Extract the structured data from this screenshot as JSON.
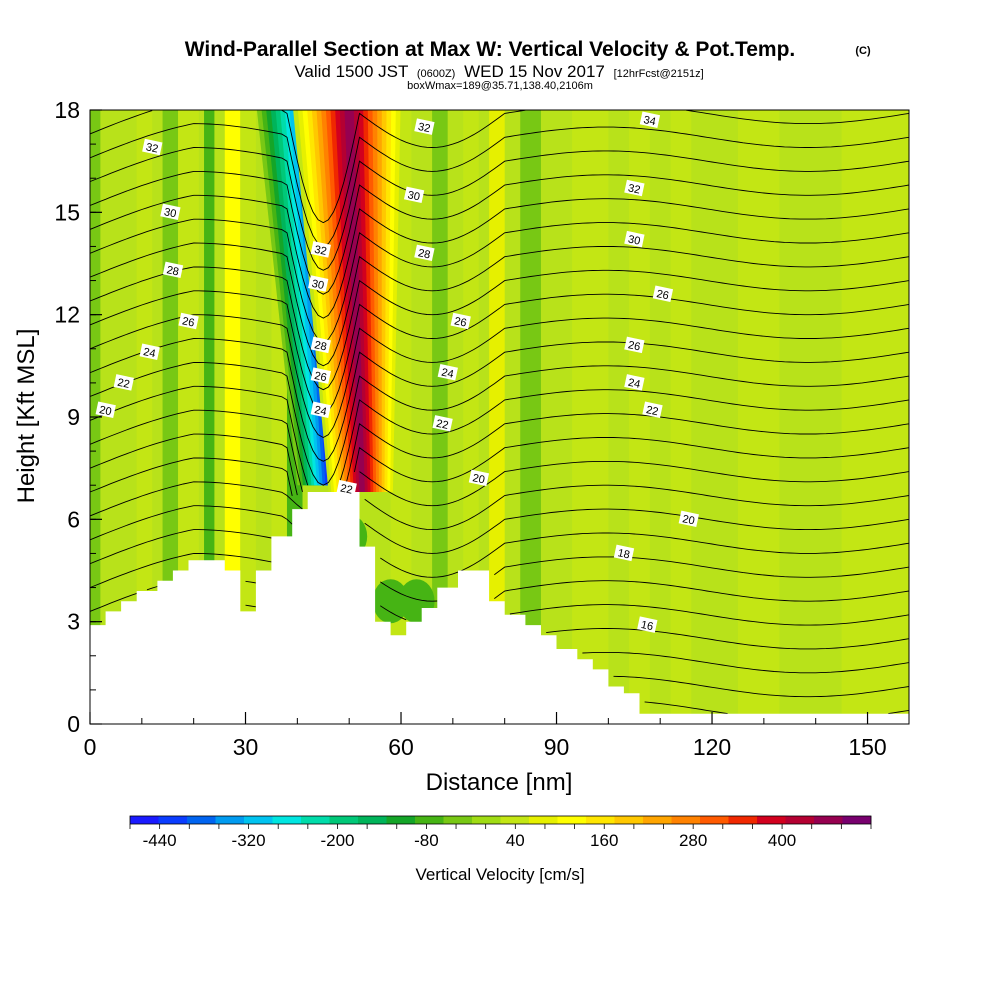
{
  "title": {
    "main": "Wind-Parallel Section at Max W: Vertical Velocity & Pot.Temp.",
    "copyright": "(C)",
    "valid_a": "Valid 1500 JST",
    "valid_b": "(0600Z)",
    "valid_c": "WED 15 Nov 2017",
    "valid_d": "[12hrFcst@2151z]",
    "box": "boxWmax=189@35.71,138.40,2106m"
  },
  "chart_data": {
    "type": "heatmap",
    "xlabel": "Distance [nm]",
    "ylabel": "Height [Kft MSL]",
    "xlim": [
      0,
      158
    ],
    "ylim": [
      0,
      18
    ],
    "x_ticks": [
      0,
      30,
      60,
      90,
      120,
      150
    ],
    "y_ticks": [
      0,
      3,
      6,
      9,
      12,
      15,
      18
    ],
    "x_ticklabels": [
      "0",
      "30",
      "60",
      "90",
      "120",
      "150"
    ],
    "y_ticklabels": [
      "0",
      "3",
      "6",
      "9",
      "12",
      "15",
      "18"
    ],
    "x_minor_step": 10,
    "y_minor_step": 1,
    "terrain_profile": {
      "x": [
        0,
        3,
        3,
        6,
        6,
        9,
        9,
        13,
        13,
        16,
        16,
        19,
        19,
        22,
        22,
        26,
        26,
        29,
        29,
        32,
        32,
        35,
        35,
        39,
        39,
        42,
        42,
        45,
        45,
        48,
        48,
        52,
        52,
        55,
        55,
        58,
        58,
        61,
        61,
        64,
        64,
        67,
        67,
        71,
        71,
        74,
        74,
        77,
        77,
        80,
        80,
        84,
        84,
        87,
        87,
        90,
        90,
        94,
        94,
        97,
        97,
        100,
        100,
        103,
        103,
        106,
        106,
        158
      ],
      "height": [
        2.9,
        2.9,
        3.3,
        3.3,
        3.6,
        3.6,
        3.9,
        3.9,
        4.2,
        4.2,
        4.5,
        4.5,
        4.8,
        4.8,
        4.8,
        4.8,
        4.5,
        4.5,
        3.3,
        3.3,
        4.5,
        4.5,
        5.5,
        5.5,
        6.3,
        6.3,
        6.8,
        6.8,
        6.8,
        6.8,
        6.8,
        6.8,
        5.2,
        5.2,
        3.0,
        3.0,
        2.6,
        2.6,
        3.0,
        3.0,
        3.4,
        3.4,
        4.0,
        4.0,
        4.5,
        4.5,
        4.5,
        4.5,
        3.6,
        3.6,
        3.2,
        3.2,
        2.9,
        2.9,
        2.6,
        2.6,
        2.2,
        2.2,
        1.9,
        1.9,
        1.6,
        1.6,
        1.1,
        1.1,
        0.9,
        0.9,
        0.3,
        0.3
      ]
    },
    "vertical_velocity_field": {
      "units": "cm/s",
      "background_bands": [
        {
          "x0": 0,
          "x1": 2,
          "value": -40
        },
        {
          "x0": 9,
          "x1": 12,
          "value": 40
        },
        {
          "x0": 14,
          "x1": 17,
          "value": -40
        },
        {
          "x0": 17,
          "x1": 21,
          "value": 40
        },
        {
          "x0": 22,
          "x1": 24,
          "value": -80
        },
        {
          "x0": 26,
          "x1": 29,
          "value": 120
        },
        {
          "x0": 29,
          "x1": 32,
          "value": 40
        },
        {
          "x0": 35,
          "x1": 38,
          "value": 40
        },
        {
          "x0": 38,
          "x1": 41,
          "value": -80
        },
        {
          "x0": 48,
          "x1": 51,
          "value": -40
        },
        {
          "x0": 58,
          "x1": 62,
          "value": 40
        },
        {
          "x0": 66,
          "x1": 69,
          "value": -40
        },
        {
          "x0": 72,
          "x1": 75,
          "value": 40
        },
        {
          "x0": 77,
          "x1": 80,
          "value": 80
        },
        {
          "x0": 83,
          "x1": 87,
          "value": -40
        },
        {
          "x0": 93,
          "x1": 100,
          "value": 40
        },
        {
          "x0": 104,
          "x1": 108,
          "value": 40
        },
        {
          "x0": 112,
          "x1": 116,
          "value": 40
        },
        {
          "x0": 125,
          "x1": 133,
          "value": 40
        },
        {
          "x0": 145,
          "x1": 158,
          "value": 40
        }
      ],
      "downdraft_core": {
        "x_top": 43.0,
        "x_bottom": 46.5,
        "y_top": 18,
        "y_bottom": 7.0,
        "min_value": -440
      },
      "updraft_core": {
        "x_top": 50.0,
        "x_bottom": 52.5,
        "y_top": 18,
        "y_bottom": 6.8,
        "max_value": 480
      },
      "low_level_cells": [
        {
          "x": 58,
          "y": 3.6,
          "value": -80
        },
        {
          "x": 63,
          "y": 3.6,
          "value": -80
        },
        {
          "x": 50,
          "y": 5.5,
          "value": -80
        }
      ]
    },
    "potential_temperature_contours": {
      "units": "C",
      "levels": [
        16,
        18,
        20,
        22,
        24,
        26,
        28,
        30,
        32,
        34
      ],
      "labels": [
        {
          "x": 12,
          "y": 16.9,
          "text": "32"
        },
        {
          "x": 15.5,
          "y": 15.0,
          "text": "30"
        },
        {
          "x": 16,
          "y": 13.3,
          "text": "28"
        },
        {
          "x": 19,
          "y": 11.8,
          "text": "26"
        },
        {
          "x": 11.5,
          "y": 10.9,
          "text": "24"
        },
        {
          "x": 6.5,
          "y": 10.0,
          "text": "22"
        },
        {
          "x": 3,
          "y": 9.2,
          "text": "20"
        },
        {
          "x": 44.5,
          "y": 13.9,
          "text": "32"
        },
        {
          "x": 44,
          "y": 12.9,
          "text": "30"
        },
        {
          "x": 44.5,
          "y": 11.1,
          "text": "28"
        },
        {
          "x": 44.5,
          "y": 10.2,
          "text": "26"
        },
        {
          "x": 44.5,
          "y": 9.2,
          "text": "24"
        },
        {
          "x": 49.5,
          "y": 6.9,
          "text": "22"
        },
        {
          "x": 64.5,
          "y": 17.5,
          "text": "32"
        },
        {
          "x": 62.5,
          "y": 15.5,
          "text": "30"
        },
        {
          "x": 64.5,
          "y": 13.8,
          "text": "28"
        },
        {
          "x": 71.5,
          "y": 11.8,
          "text": "26"
        },
        {
          "x": 69,
          "y": 10.3,
          "text": "24"
        },
        {
          "x": 68,
          "y": 8.8,
          "text": "22"
        },
        {
          "x": 75,
          "y": 7.2,
          "text": "20"
        },
        {
          "x": 108,
          "y": 17.7,
          "text": "34"
        },
        {
          "x": 105,
          "y": 15.7,
          "text": "32"
        },
        {
          "x": 105,
          "y": 14.2,
          "text": "30"
        },
        {
          "x": 110.5,
          "y": 12.6,
          "text": "26"
        },
        {
          "x": 105,
          "y": 11.1,
          "text": "26"
        },
        {
          "x": 105,
          "y": 10.0,
          "text": "24"
        },
        {
          "x": 108.5,
          "y": 9.2,
          "text": "22"
        },
        {
          "x": 115.5,
          "y": 6.0,
          "text": "20"
        },
        {
          "x": 103,
          "y": 5.0,
          "text": "18"
        },
        {
          "x": 107.5,
          "y": 2.9,
          "text": "16"
        }
      ]
    },
    "colorbar": {
      "label": "Vertical Velocity [cm/s]",
      "bounds": [
        -480,
        520
      ],
      "step": 40,
      "tick_values": [
        -440,
        -320,
        -200,
        -80,
        40,
        160,
        280,
        400
      ],
      "tick_labels": [
        "-440",
        "-320",
        "-200",
        "-80",
        "40",
        "160",
        "280",
        "400"
      ],
      "colors": [
        "#1a1aff",
        "#0a3cff",
        "#0064f0",
        "#009bf0",
        "#00c3f0",
        "#00e6e1",
        "#00dcaa",
        "#00c878",
        "#00b45a",
        "#14a528",
        "#46b414",
        "#78c814",
        "#a0dc14",
        "#c3e614",
        "#e6f000",
        "#ffff00",
        "#ffe600",
        "#ffc800",
        "#ffa500",
        "#ff8200",
        "#ff5a00",
        "#f02800",
        "#d2001e",
        "#b40032",
        "#960050",
        "#78006e"
      ]
    }
  }
}
